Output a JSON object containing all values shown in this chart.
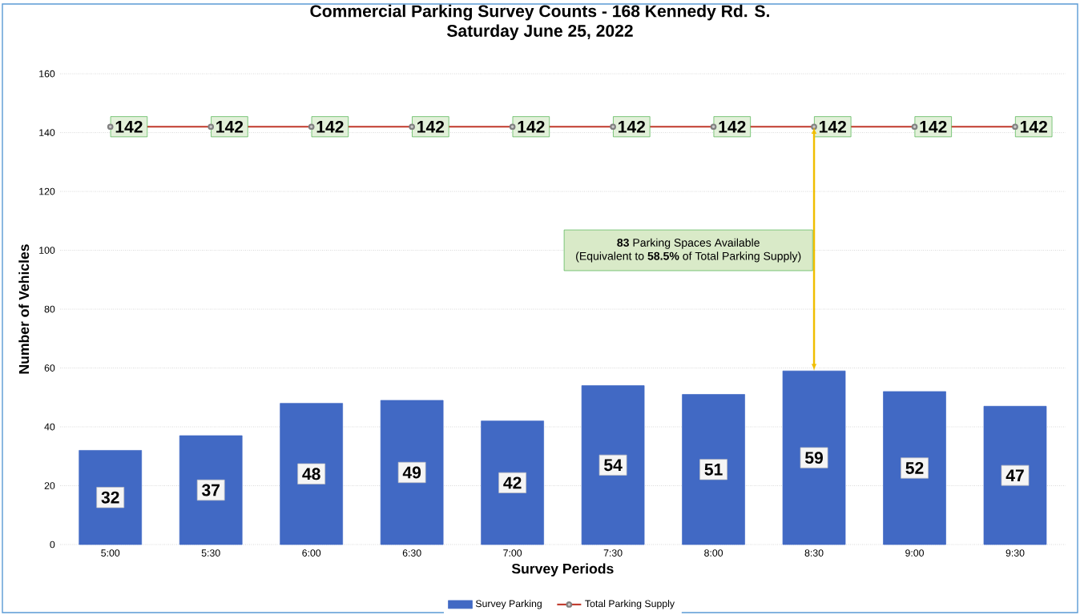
{
  "chart_data": {
    "type": "bar",
    "title": "Commercial Parking Survey Counts - 168 Kennedy Rd. S.",
    "subtitle": "Saturday June 25, 2022",
    "xlabel": "Survey Periods",
    "ylabel": "Number of Vehicles",
    "categories": [
      "5:00",
      "5:30",
      "6:00",
      "6:30",
      "7:00",
      "7:30",
      "8:00",
      "8:30",
      "9:00",
      "9:30"
    ],
    "series": [
      {
        "name": "Survey Parking",
        "color": "#4169c4",
        "values": [
          32,
          37,
          48,
          49,
          42,
          54,
          51,
          59,
          52,
          47
        ]
      },
      {
        "name": "Total Parking Supply",
        "type": "line",
        "color": "#c0392b",
        "values": [
          142,
          142,
          142,
          142,
          142,
          142,
          142,
          142,
          142,
          142
        ]
      }
    ],
    "ylim": [
      0,
      160
    ],
    "yticks": [
      0,
      20,
      40,
      60,
      80,
      100,
      120,
      140,
      160
    ],
    "grid": "y",
    "legend": "bottom",
    "marker": "circle",
    "line_style": "solid",
    "data_labels": true,
    "annotations": [
      "**83** Parking Spaces Available",
      "(Equivalent to **58.5%** of Total Parking Supply)"
    ]
  }
}
